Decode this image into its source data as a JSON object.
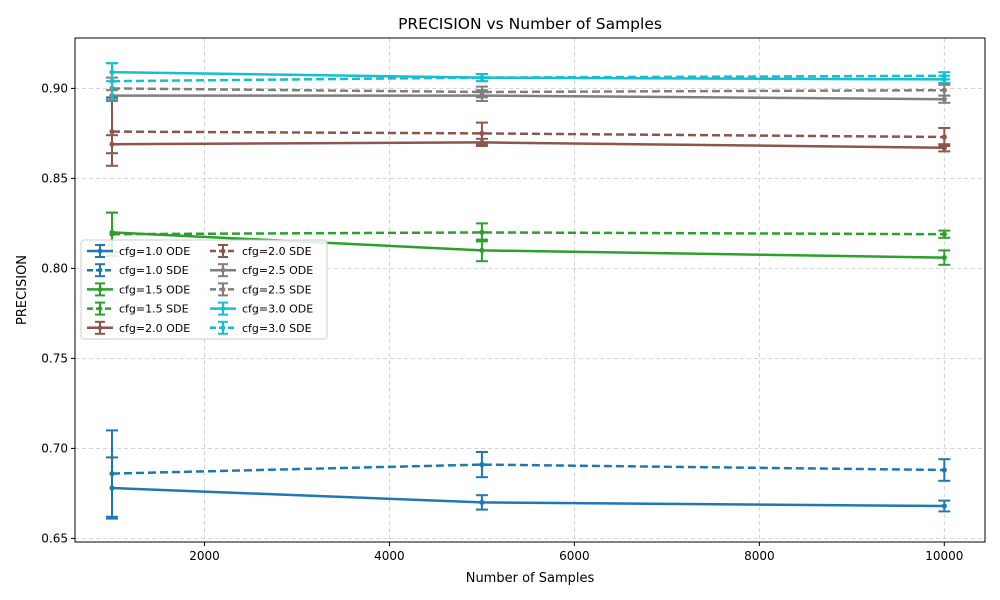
{
  "chart_data": {
    "type": "line",
    "title": "PRECISION vs Number of Samples",
    "xlabel": "Number of Samples",
    "ylabel": "PRECISION",
    "xlim": [
      600,
      10440
    ],
    "ylim": [
      0.648,
      0.928
    ],
    "x_ticks": [
      2000,
      4000,
      6000,
      8000,
      10000
    ],
    "x_tick_labels": [
      "2000",
      "4000",
      "6000",
      "8000",
      "10000"
    ],
    "y_ticks": [
      0.65,
      0.7,
      0.75,
      0.8,
      0.85,
      0.9
    ],
    "y_tick_labels": [
      "0.65",
      "0.70",
      "0.75",
      "0.80",
      "0.85",
      "0.90"
    ],
    "grid": true,
    "legend_position": "center-left",
    "legend_columns": 2,
    "x": [
      1000,
      5000,
      10000
    ],
    "series": [
      {
        "name": "cfg=1.0 ODE",
        "color": "#1f77b4",
        "style": "solid",
        "values": [
          0.678,
          0.67,
          0.668
        ],
        "errors": [
          0.017,
          0.004,
          0.003
        ]
      },
      {
        "name": "cfg=1.0 SDE",
        "color": "#1f77b4",
        "style": "dashed",
        "values": [
          0.686,
          0.691,
          0.688
        ],
        "errors": [
          0.024,
          0.007,
          0.006
        ]
      },
      {
        "name": "cfg=1.5 ODE",
        "color": "#2ca02c",
        "style": "solid",
        "values": [
          0.82,
          0.81,
          0.806
        ],
        "errors": [
          0.011,
          0.006,
          0.004
        ]
      },
      {
        "name": "cfg=1.5 SDE",
        "color": "#2ca02c",
        "style": "dashed",
        "values": [
          0.819,
          0.82,
          0.819
        ],
        "errors": [
          0.012,
          0.005,
          0.002
        ]
      },
      {
        "name": "cfg=2.0 ODE",
        "color": "#8c564b",
        "style": "solid",
        "values": [
          0.869,
          0.87,
          0.867
        ],
        "errors": [
          0.005,
          0.002,
          0.002
        ]
      },
      {
        "name": "cfg=2.0 SDE",
        "color": "#8c564b",
        "style": "dashed",
        "values": [
          0.876,
          0.875,
          0.873
        ],
        "errors": [
          0.019,
          0.006,
          0.005
        ]
      },
      {
        "name": "cfg=2.5 ODE",
        "color": "#7f7f7f",
        "style": "solid",
        "values": [
          0.896,
          0.896,
          0.894
        ],
        "errors": [
          0.003,
          0.003,
          0.002
        ]
      },
      {
        "name": "cfg=2.5 SDE",
        "color": "#7f7f7f",
        "style": "dashed",
        "values": [
          0.9,
          0.898,
          0.899
        ],
        "errors": [
          0.006,
          0.003,
          0.003
        ]
      },
      {
        "name": "cfg=3.0 ODE",
        "color": "#17becf",
        "style": "solid",
        "values": [
          0.909,
          0.906,
          0.905
        ],
        "errors": [
          0.005,
          0.002,
          0.002
        ]
      },
      {
        "name": "cfg=3.0 SDE",
        "color": "#17becf",
        "style": "dashed",
        "values": [
          0.904,
          0.906,
          0.907
        ],
        "errors": [
          0.01,
          0.002,
          0.002
        ]
      }
    ]
  }
}
